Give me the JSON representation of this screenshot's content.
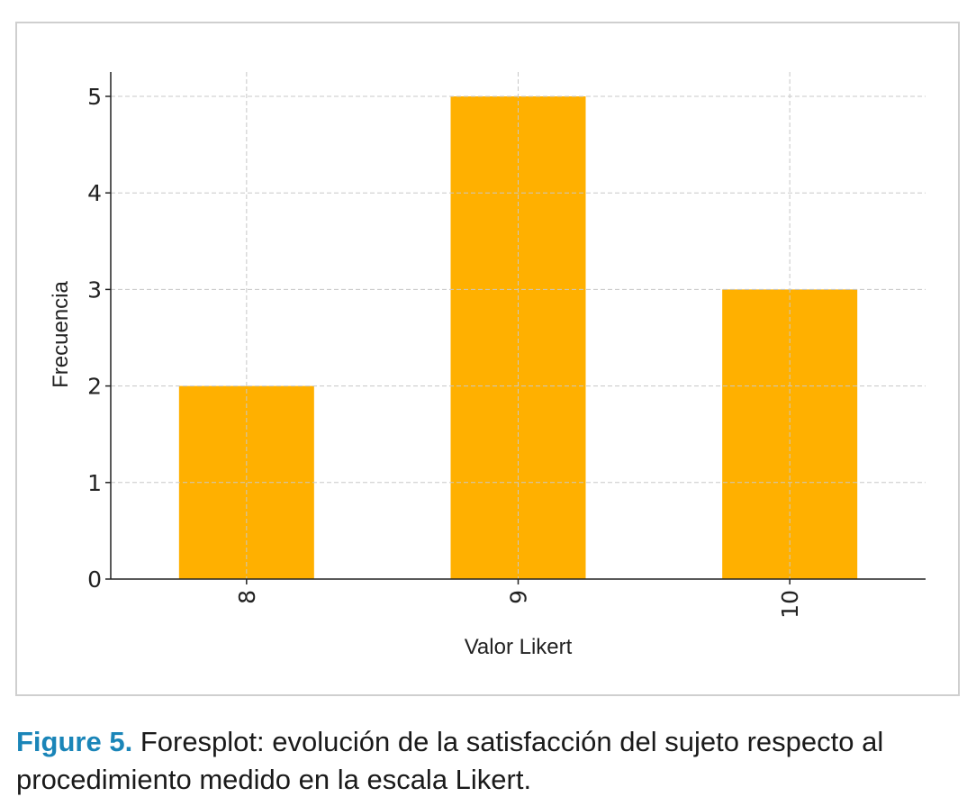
{
  "chart_data": {
    "type": "bar",
    "categories": [
      "8",
      "9",
      "10"
    ],
    "values": [
      2,
      5,
      3
    ],
    "xlabel": "Valor Likert",
    "ylabel": "Frecuencia",
    "ylim": [
      0,
      5.25
    ],
    "yticks": [
      0,
      1,
      2,
      3,
      4,
      5
    ],
    "grid": true,
    "bar_color": "#ffb000"
  },
  "caption": {
    "label": "Figure 5.",
    "text": " Foresplot: evolución de la satisfacción del sujeto respecto al procedimiento medido en la escala Likert."
  },
  "colors": {
    "caption_label": "#1a85b8",
    "frame": "#cfcfcf"
  }
}
